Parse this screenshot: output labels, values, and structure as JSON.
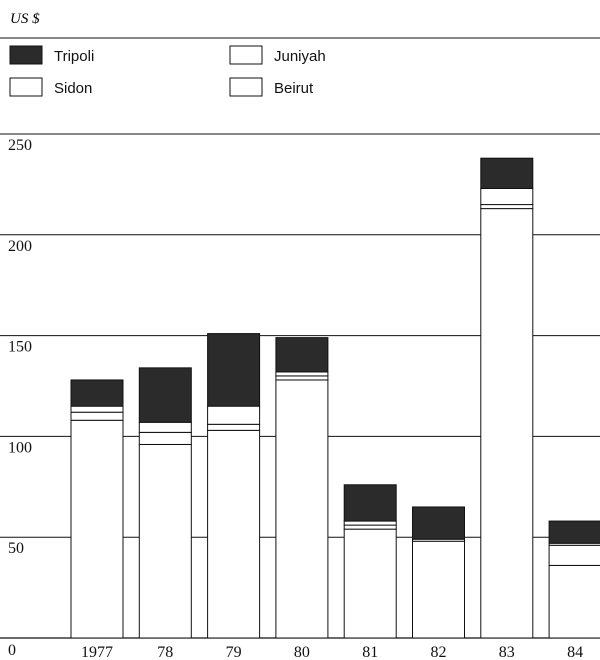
{
  "chart_data": {
    "type": "bar",
    "stacked": true,
    "unit_label": "US $",
    "categories": [
      "1977",
      "78",
      "79",
      "80",
      "81",
      "82",
      "83",
      "84"
    ],
    "series": [
      {
        "name": "Beirut",
        "values": [
          108,
          96,
          103,
          128,
          54,
          48,
          213,
          36
        ]
      },
      {
        "name": "Sidon",
        "values": [
          4,
          6,
          3,
          2,
          2,
          1,
          2,
          10
        ]
      },
      {
        "name": "Juniyah",
        "values": [
          3,
          5,
          9,
          2,
          2,
          0,
          8,
          1
        ]
      },
      {
        "name": "Tripoli",
        "values": [
          13,
          27,
          36,
          17,
          18,
          16,
          15,
          11
        ]
      }
    ],
    "legend": [
      {
        "name": "Tripoli",
        "pattern": "dark"
      },
      {
        "name": "Juniyah",
        "pattern": "blank"
      },
      {
        "name": "Sidon",
        "pattern": "blank"
      },
      {
        "name": "Beirut",
        "pattern": "blank"
      }
    ],
    "yticks": [
      "0",
      "50",
      "100",
      "150",
      "200",
      "250"
    ],
    "ylim": [
      0,
      250
    ],
    "grid": true,
    "legend_position": "top-left",
    "colors": {
      "tripoli": "#2b2b2b",
      "blank": "#ffffff",
      "stroke": "#111111"
    }
  }
}
